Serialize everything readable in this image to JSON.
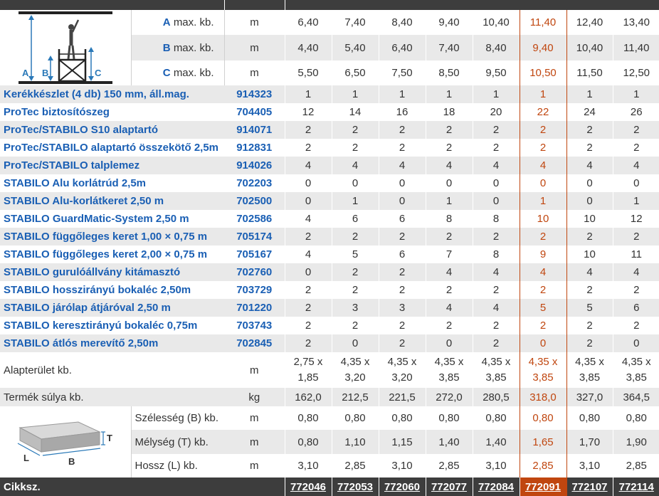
{
  "columns": [
    "772046",
    "772053",
    "772060",
    "772077",
    "772084",
    "772091",
    "772107",
    "772114"
  ],
  "highlight_index": 5,
  "top_specs": [
    {
      "letter": "A",
      "label": "max. kb.",
      "unit": "m",
      "values": [
        "6,40",
        "7,40",
        "8,40",
        "9,40",
        "10,40",
        "11,40",
        "12,40",
        "13,40"
      ]
    },
    {
      "letter": "B",
      "label": "max. kb.",
      "unit": "m",
      "values": [
        "4,40",
        "5,40",
        "6,40",
        "7,40",
        "8,40",
        "9,40",
        "10,40",
        "11,40"
      ]
    },
    {
      "letter": "C",
      "label": "max. kb.",
      "unit": "m",
      "values": [
        "5,50",
        "6,50",
        "7,50",
        "8,50",
        "9,50",
        "10,50",
        "11,50",
        "12,50"
      ]
    }
  ],
  "diagram_labels": {
    "a": "A",
    "b": "B",
    "c": "C"
  },
  "parts": [
    {
      "name": "Kerékkészlet (4 db) 150 mm, áll.mag.",
      "art": "914323",
      "values": [
        "1",
        "1",
        "1",
        "1",
        "1",
        "1",
        "1",
        "1"
      ]
    },
    {
      "name": "ProTec biztosítószeg",
      "art": "704405",
      "values": [
        "12",
        "14",
        "16",
        "18",
        "20",
        "22",
        "24",
        "26"
      ]
    },
    {
      "name": "ProTec/STABILO S10 alaptartó",
      "art": "914071",
      "values": [
        "2",
        "2",
        "2",
        "2",
        "2",
        "2",
        "2",
        "2"
      ]
    },
    {
      "name": "ProTec/STABILO alaptartó összekötő 2,5m",
      "art": "912831",
      "values": [
        "2",
        "2",
        "2",
        "2",
        "2",
        "2",
        "2",
        "2"
      ]
    },
    {
      "name": "ProTec/STABILO talplemez",
      "art": "914026",
      "values": [
        "4",
        "4",
        "4",
        "4",
        "4",
        "4",
        "4",
        "4"
      ]
    },
    {
      "name": "STABILO Alu korlátrúd 2,5m",
      "art": "702203",
      "values": [
        "0",
        "0",
        "0",
        "0",
        "0",
        "0",
        "0",
        "0"
      ]
    },
    {
      "name": "STABILO Alu-korlátkeret 2,50 m",
      "art": "702500",
      "values": [
        "0",
        "1",
        "0",
        "1",
        "0",
        "1",
        "0",
        "1"
      ]
    },
    {
      "name": "STABILO GuardMatic-System 2,50 m",
      "art": "702586",
      "values": [
        "4",
        "6",
        "6",
        "8",
        "8",
        "10",
        "10",
        "12"
      ]
    },
    {
      "name": "STABILO függőleges keret 1,00 × 0,75 m",
      "art": "705174",
      "values": [
        "2",
        "2",
        "2",
        "2",
        "2",
        "2",
        "2",
        "2"
      ]
    },
    {
      "name": "STABILO függőleges keret 2,00 × 0,75 m",
      "art": "705167",
      "values": [
        "4",
        "5",
        "6",
        "7",
        "8",
        "9",
        "10",
        "11"
      ]
    },
    {
      "name": "STABILO gurulóállvány kitámasztó",
      "art": "702760",
      "values": [
        "0",
        "2",
        "2",
        "4",
        "4",
        "4",
        "4",
        "4"
      ]
    },
    {
      "name": "STABILO hosszirányú bokaléc 2,50m",
      "art": "703729",
      "values": [
        "2",
        "2",
        "2",
        "2",
        "2",
        "2",
        "2",
        "2"
      ]
    },
    {
      "name": "STABILO járólap átjáróval 2,50 m",
      "art": "701220",
      "values": [
        "2",
        "3",
        "3",
        "4",
        "4",
        "5",
        "5",
        "6"
      ]
    },
    {
      "name": "STABILO keresztirányú bokaléc 0,75m",
      "art": "703743",
      "values": [
        "2",
        "2",
        "2",
        "2",
        "2",
        "2",
        "2",
        "2"
      ]
    },
    {
      "name": "STABILO átlós merevítő 2,50m",
      "art": "702845",
      "values": [
        "2",
        "0",
        "2",
        "0",
        "2",
        "0",
        "2",
        "0"
      ]
    }
  ],
  "area": {
    "label": "Alapterület kb.",
    "unit": "m",
    "values": [
      [
        "2,75 x",
        "1,85"
      ],
      [
        "4,35 x",
        "3,20"
      ],
      [
        "4,35 x",
        "3,20"
      ],
      [
        "4,35 x",
        "3,85"
      ],
      [
        "4,35 x",
        "3,85"
      ],
      [
        "4,35 x",
        "3,85"
      ],
      [
        "4,35 x",
        "3,85"
      ],
      [
        "4,35 x",
        "3,85"
      ]
    ]
  },
  "weight": {
    "label": "Termék súlya kb.",
    "unit": "kg",
    "values": [
      "162,0",
      "212,5",
      "221,5",
      "272,0",
      "280,5",
      "318,0",
      "327,0",
      "364,5"
    ]
  },
  "pack_specs": [
    {
      "label": "Szélesség (B) kb.",
      "unit": "m",
      "values": [
        "0,80",
        "0,80",
        "0,80",
        "0,80",
        "0,80",
        "0,80",
        "0,80",
        "0,80"
      ]
    },
    {
      "label": "Mélység (T) kb.",
      "unit": "m",
      "values": [
        "0,80",
        "1,10",
        "1,15",
        "1,40",
        "1,40",
        "1,65",
        "1,70",
        "1,90"
      ]
    },
    {
      "label": "Hossz (L) kb.",
      "unit": "m",
      "values": [
        "3,10",
        "2,85",
        "3,10",
        "2,85",
        "3,10",
        "2,85",
        "3,10",
        "2,85"
      ]
    }
  ],
  "package_labels": {
    "t": "T",
    "l": "L",
    "b": "B"
  },
  "footer": {
    "label": "Cikksz."
  },
  "colors": {
    "accent_blue": "#1a5fb4",
    "highlight": "#c0460f",
    "dark_bar": "#3d3d3d",
    "zebra": "#e9e9e9"
  }
}
